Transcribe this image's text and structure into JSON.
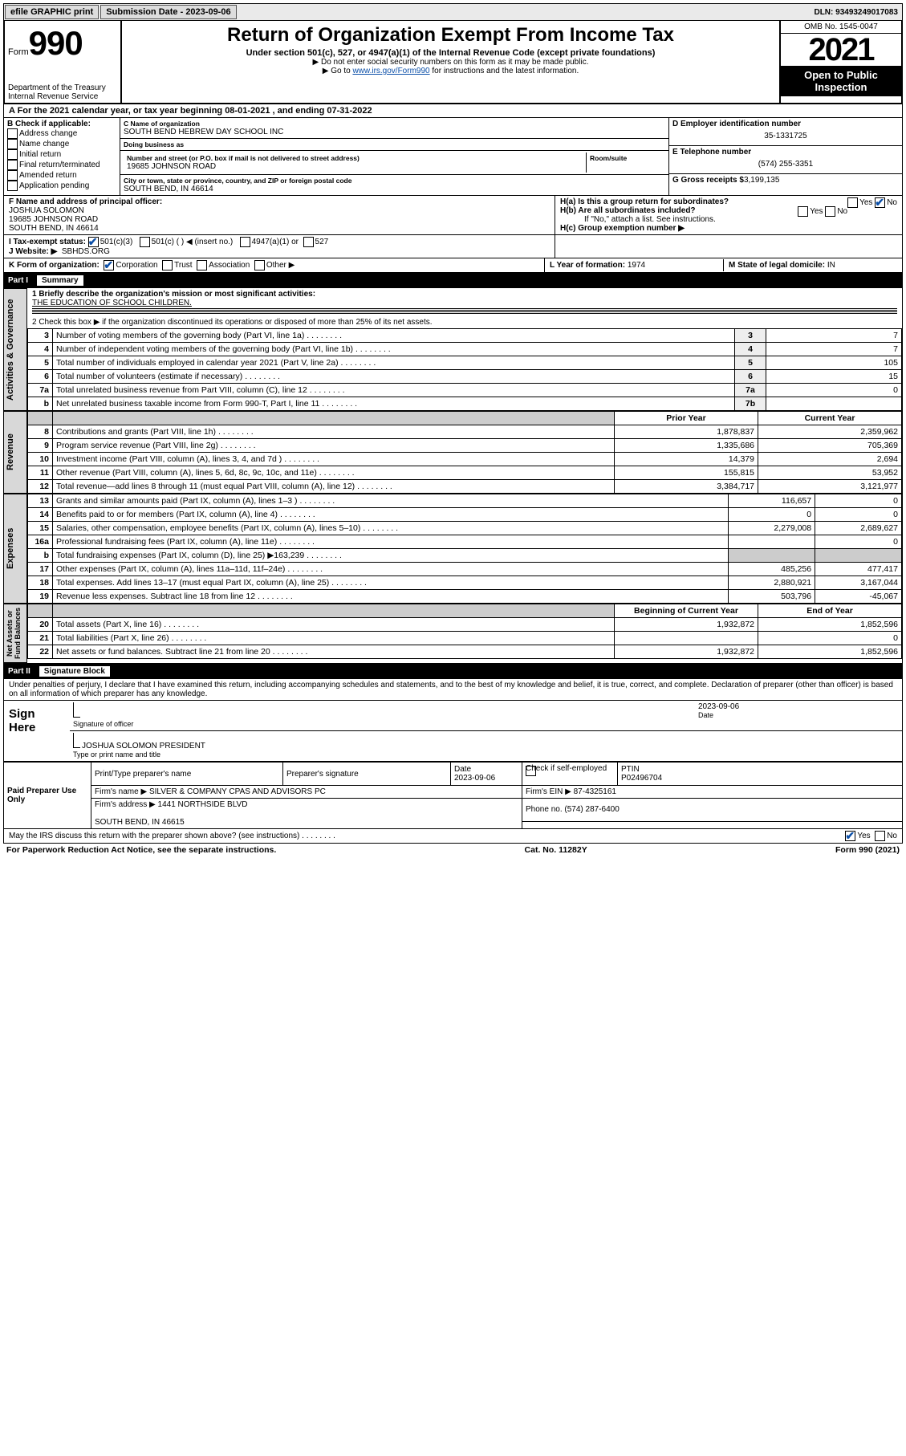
{
  "topbar": {
    "efile": "efile GRAPHIC print",
    "submission_label": "Submission Date - 2023-09-06",
    "dln": "DLN: 93493249017083"
  },
  "header": {
    "form_word": "Form",
    "form_no": "990",
    "dept": "Department of the Treasury\nInternal Revenue Service",
    "title": "Return of Organization Exempt From Income Tax",
    "sub": "Under section 501(c), 527, or 4947(a)(1) of the Internal Revenue Code (except private foundations)",
    "note1": "▶ Do not enter social security numbers on this form as it may be made public.",
    "note2_pre": "▶ Go to ",
    "note2_link": "www.irs.gov/Form990",
    "note2_post": " for instructions and the latest information.",
    "omb": "OMB No. 1545-0047",
    "year": "2021",
    "open": "Open to Public Inspection"
  },
  "lineA": "A For the 2021 calendar year, or tax year beginning 08-01-2021   , and ending 07-31-2022",
  "boxB": {
    "label": "B Check if applicable:",
    "opts": [
      "Address change",
      "Name change",
      "Initial return",
      "Final return/terminated",
      "Amended return",
      "Application pending"
    ]
  },
  "boxC": {
    "name_label": "C Name of organization",
    "name": "SOUTH BEND HEBREW DAY SCHOOL INC",
    "dba_label": "Doing business as",
    "dba": "",
    "street_label": "Number and street (or P.O. box if mail is not delivered to street address)",
    "room_label": "Room/suite",
    "street": "19685 JOHNSON ROAD",
    "city_label": "City or town, state or province, country, and ZIP or foreign postal code",
    "city": "SOUTH BEND, IN  46614"
  },
  "boxD": {
    "label": "D Employer identification number",
    "val": "35-1331725"
  },
  "boxE": {
    "label": "E Telephone number",
    "val": "(574) 255-3351"
  },
  "boxG": {
    "label": "G Gross receipts $",
    "val": "3,199,135"
  },
  "boxF": {
    "label": "F Name and address of principal officer:",
    "name": "JOSHUA SOLOMON",
    "addr1": "19685 JOHNSON ROAD",
    "addr2": "SOUTH BEND, IN  46614"
  },
  "boxH": {
    "a": "H(a)  Is this a group return for subordinates?",
    "b": "H(b)  Are all subordinates included?",
    "b2": "If \"No,\" attach a list. See instructions.",
    "c": "H(c)  Group exemption number ▶"
  },
  "lineI": {
    "label": "I   Tax-exempt status:",
    "opts": [
      "501(c)(3)",
      "501(c) (  ) ◀ (insert no.)",
      "4947(a)(1) or",
      "527"
    ]
  },
  "lineJ": {
    "label": "J   Website: ▶",
    "val": "SBHDS.ORG"
  },
  "lineK": {
    "label": "K Form of organization:",
    "opts": [
      "Corporation",
      "Trust",
      "Association",
      "Other ▶"
    ]
  },
  "lineL": {
    "label": "L Year of formation:",
    "val": "1974"
  },
  "lineM": {
    "label": "M State of legal domicile:",
    "val": "IN"
  },
  "part1": {
    "num": "Part I",
    "name": "Summary"
  },
  "summary": {
    "q1": "1  Briefly describe the organization's mission or most significant activities:",
    "q1val": "THE EDUCATION OF SCHOOL CHILDREN.",
    "q2": "2   Check this box ▶      if the organization discontinued its operations or disposed of more than 25% of its net assets.",
    "rows_ag": [
      {
        "n": "3",
        "d": "Number of voting members of the governing body (Part VI, line 1a)",
        "b": "3",
        "v": "7"
      },
      {
        "n": "4",
        "d": "Number of independent voting members of the governing body (Part VI, line 1b)",
        "b": "4",
        "v": "7"
      },
      {
        "n": "5",
        "d": "Total number of individuals employed in calendar year 2021 (Part V, line 2a)",
        "b": "5",
        "v": "105"
      },
      {
        "n": "6",
        "d": "Total number of volunteers (estimate if necessary)",
        "b": "6",
        "v": "15"
      },
      {
        "n": "7a",
        "d": "Total unrelated business revenue from Part VIII, column (C), line 12",
        "b": "7a",
        "v": "0"
      },
      {
        "n": "b",
        "d": "Net unrelated business taxable income from Form 990-T, Part I, line 11",
        "b": "7b",
        "v": ""
      }
    ],
    "col_headers": [
      "Prior Year",
      "Current Year"
    ],
    "rows_rev": [
      {
        "n": "8",
        "d": "Contributions and grants (Part VIII, line 1h)",
        "p": "1,878,837",
        "c": "2,359,962"
      },
      {
        "n": "9",
        "d": "Program service revenue (Part VIII, line 2g)",
        "p": "1,335,686",
        "c": "705,369"
      },
      {
        "n": "10",
        "d": "Investment income (Part VIII, column (A), lines 3, 4, and 7d )",
        "p": "14,379",
        "c": "2,694"
      },
      {
        "n": "11",
        "d": "Other revenue (Part VIII, column (A), lines 5, 6d, 8c, 9c, 10c, and 11e)",
        "p": "155,815",
        "c": "53,952"
      },
      {
        "n": "12",
        "d": "Total revenue—add lines 8 through 11 (must equal Part VIII, column (A), line 12)",
        "p": "3,384,717",
        "c": "3,121,977"
      }
    ],
    "rows_exp": [
      {
        "n": "13",
        "d": "Grants and similar amounts paid (Part IX, column (A), lines 1–3 )",
        "p": "116,657",
        "c": "0"
      },
      {
        "n": "14",
        "d": "Benefits paid to or for members (Part IX, column (A), line 4)",
        "p": "0",
        "c": "0"
      },
      {
        "n": "15",
        "d": "Salaries, other compensation, employee benefits (Part IX, column (A), lines 5–10)",
        "p": "2,279,008",
        "c": "2,689,627"
      },
      {
        "n": "16a",
        "d": "Professional fundraising fees (Part IX, column (A), line 11e)",
        "p": "",
        "c": "0"
      },
      {
        "n": "b",
        "d": "Total fundraising expenses (Part IX, column (D), line 25) ▶163,239",
        "p": "shade",
        "c": "shade"
      },
      {
        "n": "17",
        "d": "Other expenses (Part IX, column (A), lines 11a–11d, 11f–24e)",
        "p": "485,256",
        "c": "477,417"
      },
      {
        "n": "18",
        "d": "Total expenses. Add lines 13–17 (must equal Part IX, column (A), line 25)",
        "p": "2,880,921",
        "c": "3,167,044"
      },
      {
        "n": "19",
        "d": "Revenue less expenses. Subtract line 18 from line 12",
        "p": "503,796",
        "c": "-45,067"
      }
    ],
    "col_headers2": [
      "Beginning of Current Year",
      "End of Year"
    ],
    "rows_na": [
      {
        "n": "20",
        "d": "Total assets (Part X, line 16)",
        "p": "1,932,872",
        "c": "1,852,596"
      },
      {
        "n": "21",
        "d": "Total liabilities (Part X, line 26)",
        "p": "",
        "c": "0"
      },
      {
        "n": "22",
        "d": "Net assets or fund balances. Subtract line 21 from line 20",
        "p": "1,932,872",
        "c": "1,852,596"
      }
    ]
  },
  "vtabs": {
    "ag": "Activities & Governance",
    "rev": "Revenue",
    "exp": "Expenses",
    "na": "Net Assets or\nFund Balances"
  },
  "part2": {
    "num": "Part II",
    "name": "Signature Block"
  },
  "sig_decl": "Under penalties of perjury, I declare that I have examined this return, including accompanying schedules and statements, and to the best of my knowledge and belief, it is true, correct, and complete. Declaration of preparer (other than officer) is based on all information of which preparer has any knowledge.",
  "sign": {
    "here": "Sign Here",
    "sig_label": "Signature of officer",
    "date_label": "Date",
    "date": "2023-09-06",
    "name": "JOSHUA SOLOMON  PRESIDENT",
    "name_label": "Type or print name and title"
  },
  "prep": {
    "title": "Paid Preparer Use Only",
    "h": [
      "Print/Type preparer's name",
      "Preparer's signature",
      "Date",
      "",
      "PTIN"
    ],
    "date": "2023-09-06",
    "selfemp": "Check       if self-employed",
    "ptin": "P02496704",
    "firm_label": "Firm's name   ▶",
    "firm": "SILVER & COMPANY CPAS AND ADVISORS PC",
    "ein_label": "Firm's EIN ▶",
    "ein": "87-4325161",
    "addr_label": "Firm's address ▶",
    "addr": "1441 NORTHSIDE BLVD\n\nSOUTH BEND, IN  46615",
    "phone_label": "Phone no.",
    "phone": "(574) 287-6400"
  },
  "discuss": "May the IRS discuss this return with the preparer shown above? (see instructions)",
  "footer": {
    "l": "For Paperwork Reduction Act Notice, see the separate instructions.",
    "c": "Cat. No. 11282Y",
    "r": "Form 990 (2021)"
  }
}
